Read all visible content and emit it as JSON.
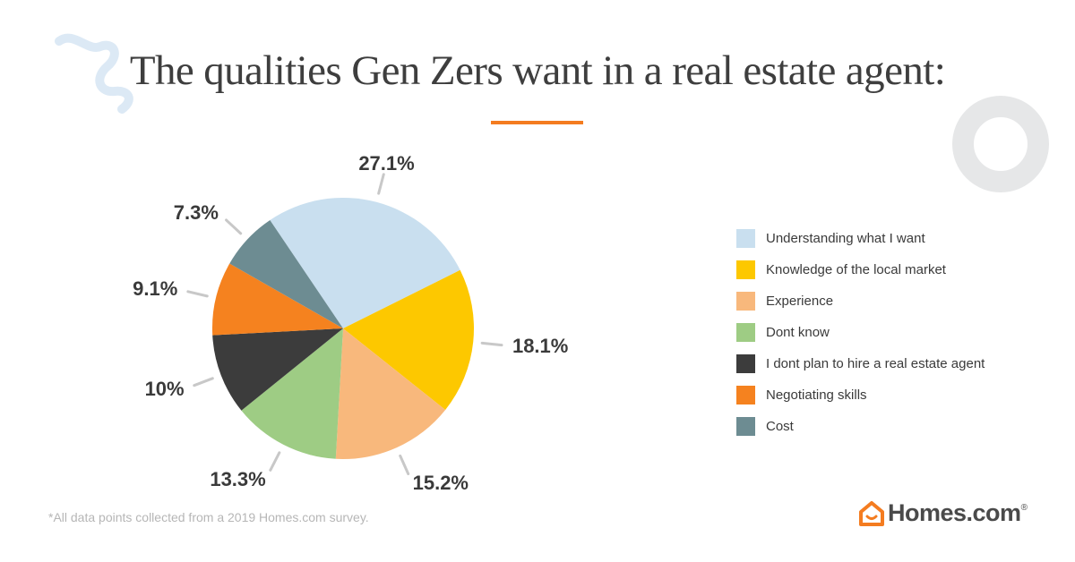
{
  "title": "The qualities Gen Zers want in a real estate agent:",
  "footnote": "*All data points collected from a 2019 Homes.com survey.",
  "brand": {
    "name": "Homes.com",
    "registered": "®",
    "icon": "house-icon",
    "icon_color": "#f47c20"
  },
  "colors": {
    "accent": "#f47c20",
    "deco_swirl": "#dce9f5",
    "deco_ring": "#e6e7e8"
  },
  "chart_data": {
    "type": "pie",
    "title": "The qualities Gen Zers want in a real estate agent:",
    "legend_position": "right",
    "slices": [
      {
        "label": "Understanding what I want",
        "value": 27.1,
        "display": "27.1%",
        "color": "#c9dfef"
      },
      {
        "label": "Knowledge of the local market",
        "value": 18.1,
        "display": "18.1%",
        "color": "#fdc800"
      },
      {
        "label": "Experience",
        "value": 15.2,
        "display": "15.2%",
        "color": "#f8b87c"
      },
      {
        "label": "Dont know",
        "value": 13.3,
        "display": "13.3%",
        "color": "#9ecc84"
      },
      {
        "label": "I dont plan to hire a real estate agent",
        "value": 10,
        "display": "10%",
        "color": "#3c3c3c"
      },
      {
        "label": "Negotiating skills",
        "value": 9.1,
        "display": "9.1%",
        "color": "#f5821f"
      },
      {
        "label": "Cost",
        "value": 7.3,
        "display": "7.3%",
        "color": "#6d8c92"
      }
    ]
  }
}
